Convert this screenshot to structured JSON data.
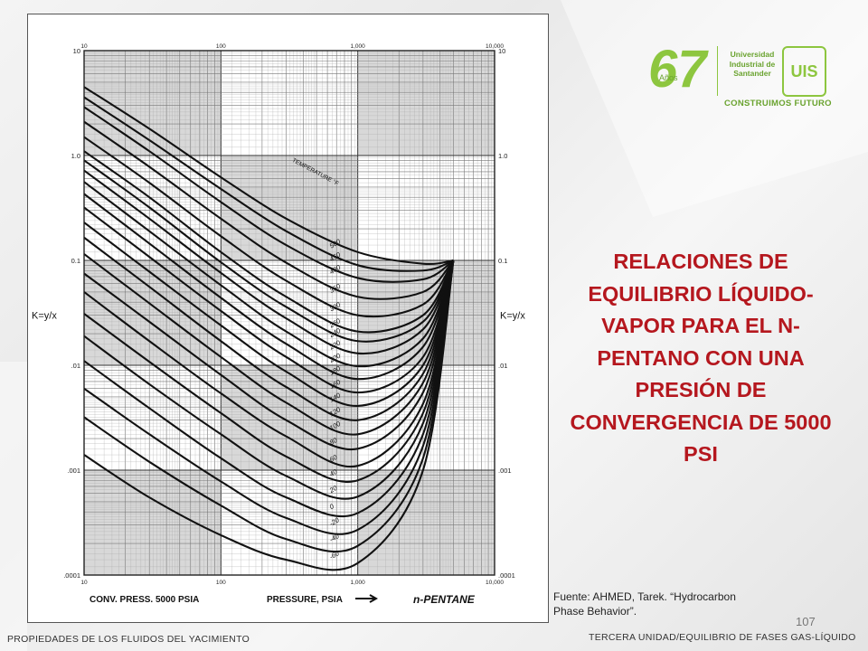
{
  "slide": {
    "title": "RELACIONES DE EQUILIBRIO LÍQUIDO-VAPOR PARA EL N-PENTANO CON UNA PRESIÓN DE CONVERGENCIA DE 5000 PSI",
    "source_line1": "Fuente: AHMED, Tarek. “Hydrocarbon",
    "source_line2": "Phase Behavior”.",
    "page_number": "107",
    "footer_left": "PROPIEDADES DE LOS FLUIDOS DEL YACIMIENTO",
    "footer_right": "TERCERA UNIDAD/EQUILIBRIO DE FASES GAS-LÍQUIDO"
  },
  "logo": {
    "anniversary": "67",
    "anos": "Años",
    "university_line1": "Universidad",
    "university_line2": "Industrial de",
    "university_line3": "Santander",
    "emblem": "UIS",
    "motto": "CONSTRUIMOS FUTURO",
    "color": "#8dc63f"
  },
  "chart_data": {
    "type": "line",
    "x_scale": "log",
    "y_scale": "log",
    "xlim": [
      10,
      10000
    ],
    "ylim": [
      0.0001,
      10
    ],
    "grid": true,
    "ylabel": "K=y/x",
    "xlabel": "PRESSURE, PSIA",
    "xlabel_left": "CONV. PRESS. 5000 PSIA",
    "component_label": "n-PENTANE",
    "temperature_header": "TEMPERATURE °F",
    "x_tick_labels": [
      "10",
      "100",
      "1,000",
      "10,000"
    ],
    "y_tick_labels": [
      "10",
      "1.0",
      "0.1",
      ".01",
      ".001",
      ".0001"
    ],
    "convergence_point": [
      5000,
      0.1
    ],
    "series": [
      {
        "name": "500",
        "x": [
          10,
          30,
          100,
          300,
          1000,
          3000,
          5000
        ],
        "y": [
          4.5,
          1.8,
          0.62,
          0.25,
          0.12,
          0.093,
          0.1
        ]
      },
      {
        "name": "450",
        "x": [
          10,
          30,
          100,
          300,
          1000,
          3000,
          5000
        ],
        "y": [
          3.6,
          1.4,
          0.48,
          0.19,
          0.09,
          0.08,
          0.1
        ]
      },
      {
        "name": "400",
        "x": [
          10,
          30,
          100,
          300,
          1000,
          3000,
          5000
        ],
        "y": [
          2.9,
          1.1,
          0.36,
          0.14,
          0.068,
          0.066,
          0.1
        ]
      },
      {
        "name": "350",
        "x": [
          10,
          30,
          100,
          300,
          1000,
          3000,
          5000
        ],
        "y": [
          2.1,
          0.78,
          0.25,
          0.095,
          0.045,
          0.05,
          0.1
        ]
      },
      {
        "name": "300",
        "x": [
          10,
          30,
          100,
          300,
          1000,
          3000,
          5000
        ],
        "y": [
          1.5,
          0.55,
          0.17,
          0.064,
          0.03,
          0.038,
          0.1
        ]
      },
      {
        "name": "260",
        "x": [
          10,
          30,
          100,
          300,
          1000,
          3000,
          5000
        ],
        "y": [
          1.1,
          0.4,
          0.12,
          0.045,
          0.021,
          0.03,
          0.1
        ]
      },
      {
        "name": "240",
        "x": [
          10,
          30,
          100,
          300,
          1000,
          3000,
          5000
        ],
        "y": [
          0.9,
          0.32,
          0.096,
          0.036,
          0.017,
          0.026,
          0.1
        ]
      },
      {
        "name": "220",
        "x": [
          10,
          30,
          100,
          300,
          1000,
          3000,
          5000
        ],
        "y": [
          0.72,
          0.25,
          0.076,
          0.028,
          0.013,
          0.022,
          0.1
        ]
      },
      {
        "name": "200",
        "x": [
          10,
          30,
          100,
          300,
          1000,
          3000,
          5000
        ],
        "y": [
          0.56,
          0.19,
          0.058,
          0.021,
          0.0098,
          0.018,
          0.1
        ]
      },
      {
        "name": "180",
        "x": [
          10,
          30,
          100,
          300,
          1000,
          3000,
          5000
        ],
        "y": [
          0.43,
          0.145,
          0.044,
          0.016,
          0.0074,
          0.015,
          0.1
        ]
      },
      {
        "name": "160",
        "x": [
          10,
          30,
          100,
          300,
          1000,
          3000,
          5000
        ],
        "y": [
          0.32,
          0.108,
          0.033,
          0.012,
          0.0055,
          0.012,
          0.1
        ]
      },
      {
        "name": "140",
        "x": [
          10,
          30,
          100,
          300,
          1000,
          3000,
          5000
        ],
        "y": [
          0.23,
          0.078,
          0.024,
          0.0087,
          0.0041,
          0.01,
          0.1
        ]
      },
      {
        "name": "120",
        "x": [
          10,
          30,
          100,
          300,
          1000,
          3000,
          5000
        ],
        "y": [
          0.165,
          0.056,
          0.017,
          0.0062,
          0.003,
          0.0083,
          0.1
        ]
      },
      {
        "name": "100",
        "x": [
          10,
          30,
          100,
          300,
          1000,
          3000,
          5000
        ],
        "y": [
          0.115,
          0.039,
          0.012,
          0.0044,
          0.0022,
          0.0068,
          0.1
        ]
      },
      {
        "name": "80",
        "x": [
          10,
          30,
          100,
          300,
          1000,
          3000,
          5000
        ],
        "y": [
          0.075,
          0.026,
          0.0081,
          0.003,
          0.0016,
          0.0055,
          0.1
        ]
      },
      {
        "name": "60",
        "x": [
          10,
          30,
          100,
          300,
          1000,
          3000,
          5000
        ],
        "y": [
          0.05,
          0.017,
          0.0054,
          0.0021,
          0.0011,
          0.0043,
          0.1
        ]
      },
      {
        "name": "40",
        "x": [
          10,
          30,
          100,
          300,
          1000,
          3000,
          5000
        ],
        "y": [
          0.031,
          0.0108,
          0.0035,
          0.00135,
          0.0008,
          0.0035,
          0.1
        ]
      },
      {
        "name": "20",
        "x": [
          10,
          30,
          100,
          300,
          1000,
          3000,
          5000
        ],
        "y": [
          0.019,
          0.0066,
          0.0022,
          0.00088,
          0.00056,
          0.0028,
          0.1
        ]
      },
      {
        "name": "0",
        "x": [
          10,
          30,
          100,
          300,
          1000,
          3000,
          5000
        ],
        "y": [
          0.011,
          0.0039,
          0.0013,
          0.00055,
          0.00039,
          0.0022,
          0.1
        ]
      },
      {
        "name": "-20",
        "x": [
          10,
          30,
          100,
          300,
          1000,
          3000,
          5000
        ],
        "y": [
          0.006,
          0.0022,
          0.00078,
          0.00035,
          0.00027,
          0.0017,
          0.1
        ]
      },
      {
        "name": "-40",
        "x": [
          10,
          30,
          100,
          300,
          1000,
          3000,
          5000
        ],
        "y": [
          0.0032,
          0.0012,
          0.00046,
          0.00022,
          0.00019,
          0.0013,
          0.1
        ]
      },
      {
        "name": "-60",
        "x": [
          10,
          30,
          100,
          300,
          1000,
          3000,
          5000
        ],
        "y": [
          0.0014,
          0.00055,
          0.00024,
          0.00014,
          0.00013,
          0.001,
          0.1
        ]
      }
    ]
  }
}
